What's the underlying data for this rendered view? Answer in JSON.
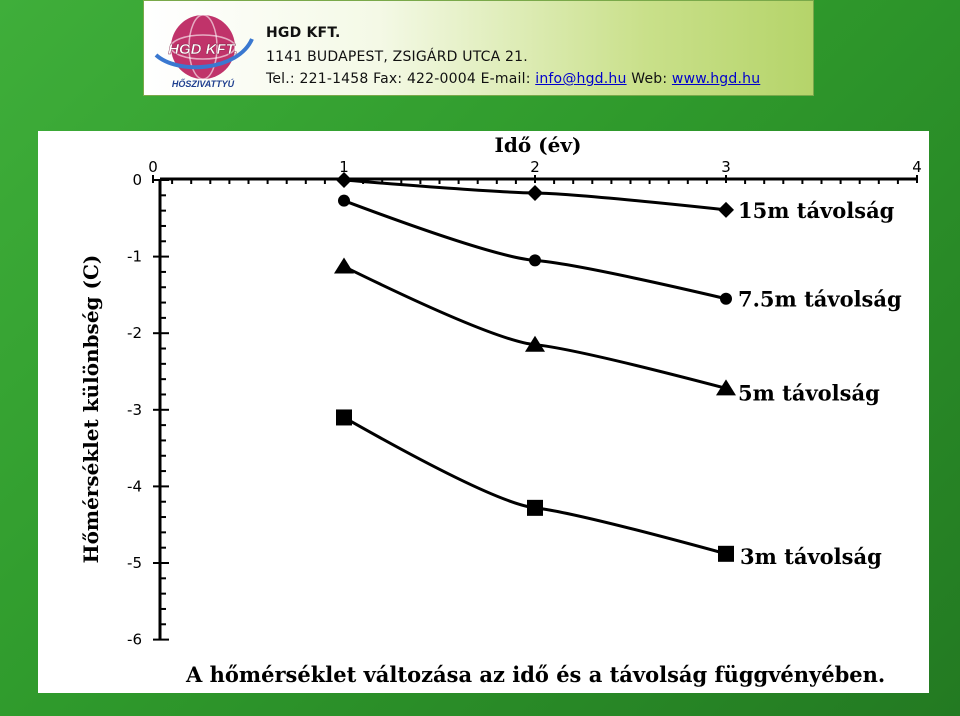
{
  "header": {
    "company_name": "HGD KFT.",
    "address": "1141 BUDAPEST, ZSIGÁRD UTCA 21.",
    "contact_prefix": "Tel.: 221-1458 Fax: 422-0004 E-mail: ",
    "email": "info@hgd.hu",
    "web_prefix": " Web: ",
    "website": "www.hgd.hu",
    "logo": {
      "icon": "globe-logo",
      "text": "HGD KFT.",
      "subtext": "HŐSZIVATTYÚ"
    }
  },
  "colors": {
    "background": "#2f9a2c",
    "link": "#0000cc",
    "logo_globe": "#c0336a",
    "logo_ring": "#3a78d0"
  },
  "chart_data": {
    "type": "line",
    "title": "",
    "xlabel": "Idő (év)",
    "ylabel": "Hőmérséklet különbség (C)",
    "caption": "A hőmérséklet változása az idő és a távolság függvényében.",
    "xlim": [
      0,
      4
    ],
    "ylim": [
      -6,
      0
    ],
    "x_ticks": [
      0,
      1,
      2,
      3,
      4
    ],
    "y_ticks": [
      0,
      -1,
      -2,
      -3,
      -4,
      -5,
      -6
    ],
    "x_axis_position": "top",
    "grid": false,
    "series": [
      {
        "name": "15m távolság",
        "marker": "diamond",
        "x": [
          1,
          2,
          3
        ],
        "y": [
          0,
          -0.17,
          -0.39
        ]
      },
      {
        "name": "7.5m távolság",
        "marker": "circle",
        "x": [
          1,
          2,
          3
        ],
        "y": [
          -0.27,
          -1.05,
          -1.55
        ]
      },
      {
        "name": "5m távolság",
        "marker": "triangle",
        "x": [
          1,
          2,
          3
        ],
        "y": [
          -1.13,
          -2.15,
          -2.72
        ]
      },
      {
        "name": "3m távolság",
        "marker": "square",
        "x": [
          1,
          2,
          3
        ],
        "y": [
          -3.1,
          -4.28,
          -4.88
        ]
      }
    ]
  }
}
